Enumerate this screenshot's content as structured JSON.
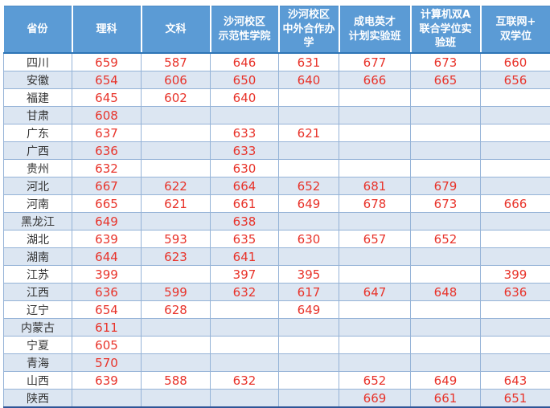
{
  "colors": {
    "header_background": "#5b9bd5",
    "header_text": "#ffffff",
    "alt_row_background": "#dce6f2",
    "cell_border": "#95b3d7",
    "header_bottom_rule": "#2e75b6",
    "table_bottom_rule": "#2f5597",
    "score_text": "#e8332a",
    "province_text": "#333333"
  },
  "chart_data": {
    "type": "table",
    "columns": [
      {
        "key": "province",
        "label": "省份"
      },
      {
        "key": "science",
        "label": "理科"
      },
      {
        "key": "arts",
        "label": "文科"
      },
      {
        "key": "shahe_demonstration_college",
        "label": "沙河校区\n示范性学院"
      },
      {
        "key": "shahe_sino_foreign_cooperation",
        "label": "沙河校区\n中外合作办\n学"
      },
      {
        "key": "chengdian_talent_program_class",
        "label": "成电英才\n计划实验班"
      },
      {
        "key": "computer_double_a_joint_degree_class",
        "label": "计算机双A\n联合学位实\n验班"
      },
      {
        "key": "internet_plus_double_degree",
        "label": "互联网+\n双学位"
      }
    ],
    "rows": [
      [
        "四川",
        "659",
        "587",
        "646",
        "631",
        "677",
        "673",
        "660"
      ],
      [
        "安徽",
        "654",
        "606",
        "650",
        "640",
        "666",
        "665",
        "656"
      ],
      [
        "福建",
        "645",
        "602",
        "640",
        "",
        "",
        "",
        ""
      ],
      [
        "甘肃",
        "608",
        "",
        "",
        "",
        "",
        "",
        ""
      ],
      [
        "广东",
        "637",
        "",
        "633",
        "621",
        "",
        "",
        ""
      ],
      [
        "广西",
        "636",
        "",
        "633",
        "",
        "",
        "",
        ""
      ],
      [
        "贵州",
        "632",
        "",
        "630",
        "",
        "",
        "",
        ""
      ],
      [
        "河北",
        "667",
        "622",
        "664",
        "652",
        "681",
        "679",
        ""
      ],
      [
        "河南",
        "665",
        "621",
        "661",
        "649",
        "678",
        "673",
        "666"
      ],
      [
        "黑龙江",
        "649",
        "",
        "638",
        "",
        "",
        "",
        ""
      ],
      [
        "湖北",
        "639",
        "593",
        "635",
        "630",
        "657",
        "652",
        ""
      ],
      [
        "湖南",
        "644",
        "623",
        "641",
        "",
        "",
        "",
        ""
      ],
      [
        "江苏",
        "399",
        "",
        "397",
        "395",
        "",
        "",
        "399"
      ],
      [
        "江西",
        "636",
        "599",
        "632",
        "617",
        "647",
        "648",
        "636"
      ],
      [
        "辽宁",
        "654",
        "628",
        "",
        "649",
        "",
        "",
        ""
      ],
      [
        "内蒙古",
        "611",
        "",
        "",
        "",
        "",
        "",
        ""
      ],
      [
        "宁夏",
        "605",
        "",
        "",
        "",
        "",
        "",
        ""
      ],
      [
        "青海",
        "570",
        "",
        "",
        "",
        "",
        "",
        ""
      ],
      [
        "山西",
        "639",
        "588",
        "632",
        "",
        "652",
        "649",
        "643"
      ],
      [
        "陕西",
        "",
        "",
        "",
        "",
        "669",
        "661",
        "651"
      ]
    ]
  }
}
